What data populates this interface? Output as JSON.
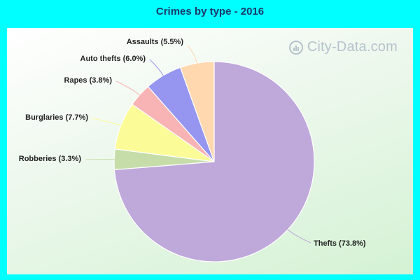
{
  "chart_data": {
    "type": "pie",
    "title": "Crimes by type - 2016",
    "slices": [
      {
        "label": "Thefts (73.8%)",
        "value": 73.8,
        "color": "#bfa8da"
      },
      {
        "label": "Robberies (3.3%)",
        "value": 3.3,
        "color": "#c6ddaa"
      },
      {
        "label": "Burglaries (7.7%)",
        "value": 7.7,
        "color": "#fbfb98"
      },
      {
        "label": "Rapes (3.8%)",
        "value": 3.8,
        "color": "#f8b4b4"
      },
      {
        "label": "Auto thefts (6.0%)",
        "value": 6.0,
        "color": "#9696f0"
      },
      {
        "label": "Assaults (5.5%)",
        "value": 5.5,
        "color": "#ffd8b0"
      }
    ],
    "start_angle_deg": 0,
    "direction": "clockwise"
  },
  "watermark": {
    "text": "City-Data.com"
  }
}
